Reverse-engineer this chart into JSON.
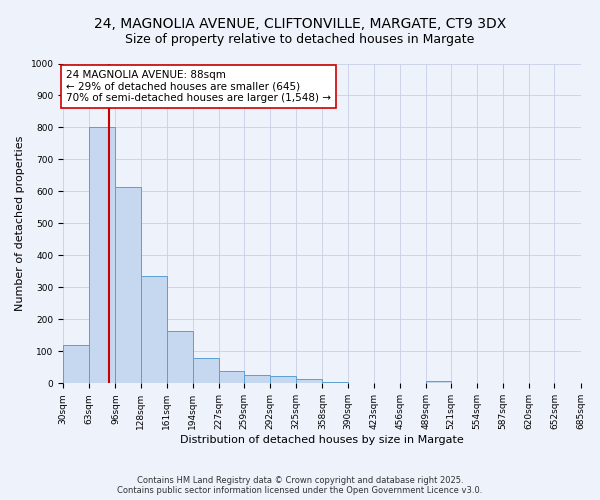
{
  "title_line1": "24, MAGNOLIA AVENUE, CLIFTONVILLE, MARGATE, CT9 3DX",
  "title_line2": "Size of property relative to detached houses in Margate",
  "xlabel": "Distribution of detached houses by size in Margate",
  "ylabel": "Number of detached properties",
  "bin_edges": [
    30,
    63,
    96,
    128,
    161,
    194,
    227,
    259,
    292,
    325,
    358,
    390,
    423,
    456,
    489,
    521,
    554,
    587,
    620,
    652,
    685
  ],
  "bar_heights": [
    120,
    800,
    615,
    335,
    165,
    80,
    38,
    25,
    22,
    15,
    5,
    0,
    0,
    0,
    8,
    0,
    0,
    0,
    0,
    0
  ],
  "bar_color": "#c5d8f0",
  "bar_edge_color": "#5a9fd4",
  "property_size": 88,
  "vline_color": "#cc0000",
  "annotation_line1": "24 MAGNOLIA AVENUE: 88sqm",
  "annotation_line2": "← 29% of detached houses are smaller (645)",
  "annotation_line3": "70% of semi-detached houses are larger (1,548) →",
  "annotation_box_color": "#ffffff",
  "annotation_box_edge": "#cc0000",
  "ylim": [
    0,
    1000
  ],
  "yticks": [
    0,
    100,
    200,
    300,
    400,
    500,
    600,
    700,
    800,
    900,
    1000
  ],
  "background_color": "#eef2fb",
  "footer_line1": "Contains HM Land Registry data © Crown copyright and database right 2025.",
  "footer_line2": "Contains public sector information licensed under the Open Government Licence v3.0.",
  "grid_color": "#c8d0e8",
  "title_fontsize": 10,
  "subtitle_fontsize": 9,
  "tick_label_fontsize": 6.5,
  "ylabel_fontsize": 8,
  "xlabel_fontsize": 8,
  "annotation_fontsize": 7.5,
  "footer_fontsize": 6
}
